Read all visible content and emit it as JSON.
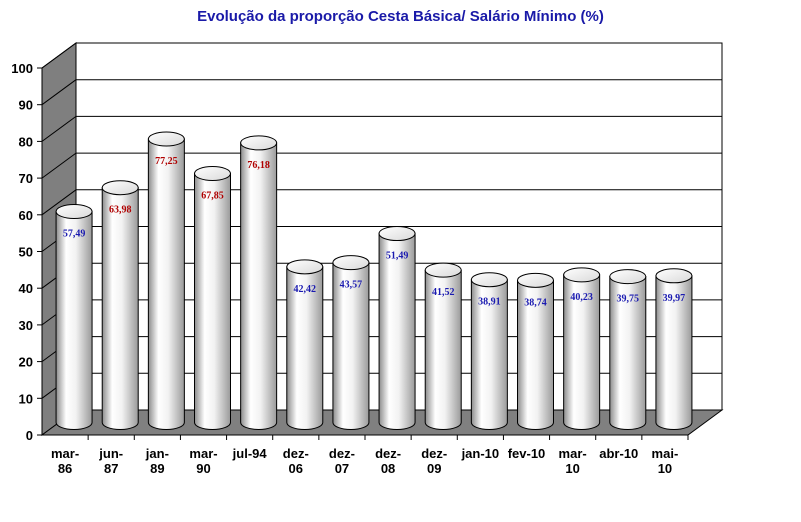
{
  "chart_data": {
    "type": "bar",
    "title": "Evolução da proporção Cesta Básica/ Salário Mínimo (%)",
    "xlabel": "",
    "ylabel": "",
    "ylim": [
      0,
      100
    ],
    "yticks": [
      0,
      10,
      20,
      30,
      40,
      50,
      60,
      70,
      80,
      90,
      100
    ],
    "grid": true,
    "legend": "none",
    "categories": [
      [
        "mar-",
        "86"
      ],
      [
        "jun-",
        "87"
      ],
      [
        "jan-",
        "89"
      ],
      [
        "mar-",
        "90"
      ],
      [
        "jul-94"
      ],
      [
        "dez-",
        "06"
      ],
      [
        "dez-",
        "07"
      ],
      [
        "dez-",
        "08"
      ],
      [
        "dez-",
        "09"
      ],
      [
        "jan-10"
      ],
      [
        "fev-10"
      ],
      [
        "mar-",
        "10"
      ],
      [
        "abr-10"
      ],
      [
        "mai-",
        "10"
      ]
    ],
    "values": [
      57.49,
      63.98,
      77.25,
      67.85,
      76.18,
      42.42,
      43.57,
      51.49,
      41.52,
      38.91,
      38.74,
      40.23,
      39.75,
      39.97
    ],
    "data_labels": [
      "57,49",
      "63,98",
      "77,25",
      "67,85",
      "76,18",
      "42,42",
      "43,57",
      "51,49",
      "41,52",
      "38,91",
      "38,74",
      "40,23",
      "39,75",
      "39,97"
    ],
    "label_colors": [
      "#1a1ab0",
      "#b00000",
      "#b00000",
      "#b00000",
      "#b00000",
      "#1a1ab0",
      "#1a1ab0",
      "#1a1ab0",
      "#1a1ab0",
      "#1a1ab0",
      "#1a1ab0",
      "#1a1ab0",
      "#1a1ab0",
      "#1a1ab0"
    ],
    "colors": {
      "wall_side": "#7f7f7f",
      "floor": "#808080",
      "bar_light": "#ffffff",
      "bar_dark": "#a6a6a6",
      "grid": "#000000"
    }
  }
}
